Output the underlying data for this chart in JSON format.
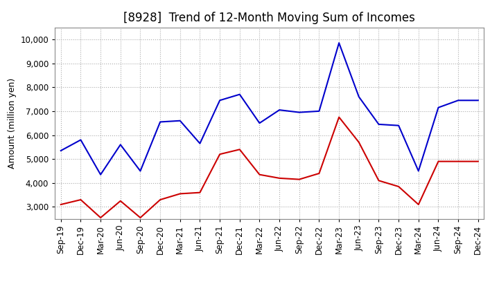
{
  "title": "[8928]  Trend of 12-Month Moving Sum of Incomes",
  "ylabel": "Amount (million yen)",
  "ylim": [
    2500,
    10500
  ],
  "yticks": [
    3000,
    4000,
    5000,
    6000,
    7000,
    8000,
    9000,
    10000
  ],
  "x_labels": [
    "Sep-19",
    "Dec-19",
    "Mar-20",
    "Jun-20",
    "Sep-20",
    "Dec-20",
    "Mar-21",
    "Jun-21",
    "Sep-21",
    "Dec-21",
    "Mar-22",
    "Jun-22",
    "Sep-22",
    "Dec-22",
    "Mar-23",
    "Jun-23",
    "Sep-23",
    "Dec-23",
    "Mar-24",
    "Jun-24",
    "Sep-24",
    "Dec-24"
  ],
  "ordinary_income": [
    5350,
    5800,
    4350,
    5600,
    4500,
    6550,
    6600,
    5650,
    7450,
    7700,
    6500,
    7050,
    6950,
    7000,
    9850,
    7600,
    6450,
    6400,
    4500,
    7150,
    7450,
    7450
  ],
  "net_income": [
    3100,
    3300,
    2550,
    3250,
    2550,
    3300,
    3550,
    3600,
    5200,
    5400,
    4350,
    4200,
    4150,
    4400,
    6750,
    5700,
    4100,
    3850,
    3100,
    4900,
    4900,
    4900
  ],
  "ordinary_income_color": "#0000cc",
  "net_income_color": "#cc0000",
  "background_color": "#ffffff",
  "grid_color": "#aaaaaa",
  "title_fontsize": 12,
  "axis_fontsize": 8.5,
  "legend_fontsize": 9.5
}
